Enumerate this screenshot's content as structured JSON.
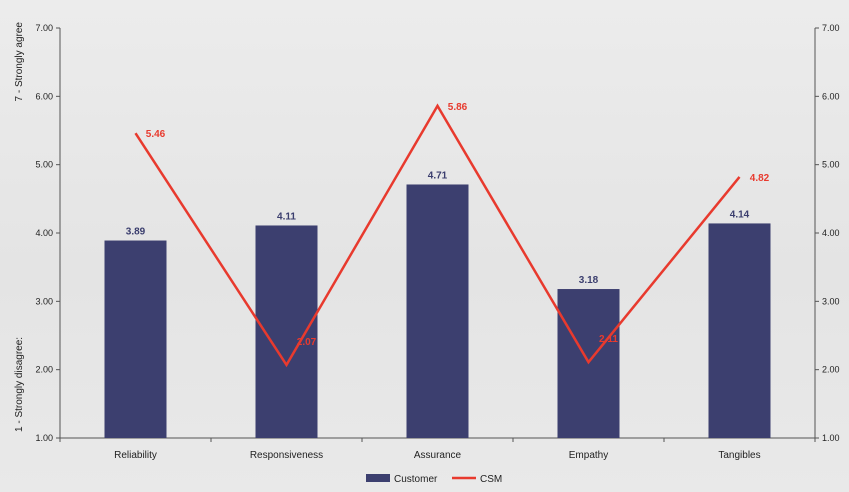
{
  "chart_data": {
    "type": "bar",
    "categories": [
      "Reliability",
      "Responsiveness",
      "Assurance",
      "Empathy",
      "Tangibles"
    ],
    "series": [
      {
        "name": "Customer",
        "type": "bar",
        "values": [
          3.89,
          4.11,
          4.71,
          3.18,
          4.14
        ],
        "labels": [
          "3.89",
          "4.11",
          "4.71",
          "3.18",
          "4.14"
        ],
        "color": "#3c3f6f"
      },
      {
        "name": "CSM",
        "type": "line",
        "values": [
          5.46,
          2.07,
          5.86,
          2.11,
          4.82
        ],
        "labels": [
          "5.46",
          "2.07",
          "5.86",
          "2.11",
          "4.82"
        ],
        "color": "#e83a2e"
      }
    ],
    "ylim": [
      1.0,
      7.0
    ],
    "yticks": [
      "1.00",
      "2.00",
      "3.00",
      "4.00",
      "5.00",
      "6.00",
      "7.00"
    ],
    "ylabel_top": "7 - Strongly agree",
    "ylabel_bottom": "1 - Strongly disagree:",
    "secondary_axis": true,
    "grid": false,
    "legend_position": "bottom-center"
  }
}
